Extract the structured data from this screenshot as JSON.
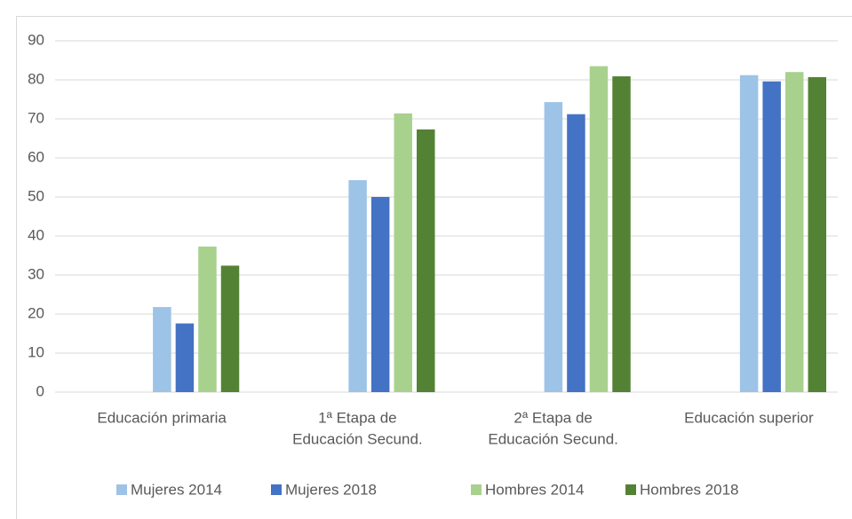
{
  "chart_data": {
    "type": "bar",
    "categories": [
      [
        "Educación primaria"
      ],
      [
        "1ª Etapa de",
        "Educación Secund."
      ],
      [
        "2ª Etapa de",
        "Educación Secund."
      ],
      [
        "Educación superior"
      ]
    ],
    "series": [
      {
        "name": "Mujeres 2014",
        "color": "#9dc3e6",
        "values": [
          21.8,
          54.3,
          74.3,
          81.2
        ]
      },
      {
        "name": "Mujeres 2018",
        "color": "#4472c4",
        "values": [
          17.6,
          50.0,
          71.2,
          79.6
        ]
      },
      {
        "name": "Hombres 2014",
        "color": "#a9d18e",
        "values": [
          37.3,
          71.4,
          83.5,
          82.0
        ]
      },
      {
        "name": "Hombres 2018",
        "color": "#548235",
        "values": [
          32.4,
          67.3,
          80.9,
          80.7
        ]
      }
    ],
    "ylim": [
      0,
      90
    ],
    "yticks": [
      0,
      10,
      20,
      30,
      40,
      50,
      60,
      70,
      80,
      90
    ],
    "grid": true,
    "legend": "bottom"
  }
}
